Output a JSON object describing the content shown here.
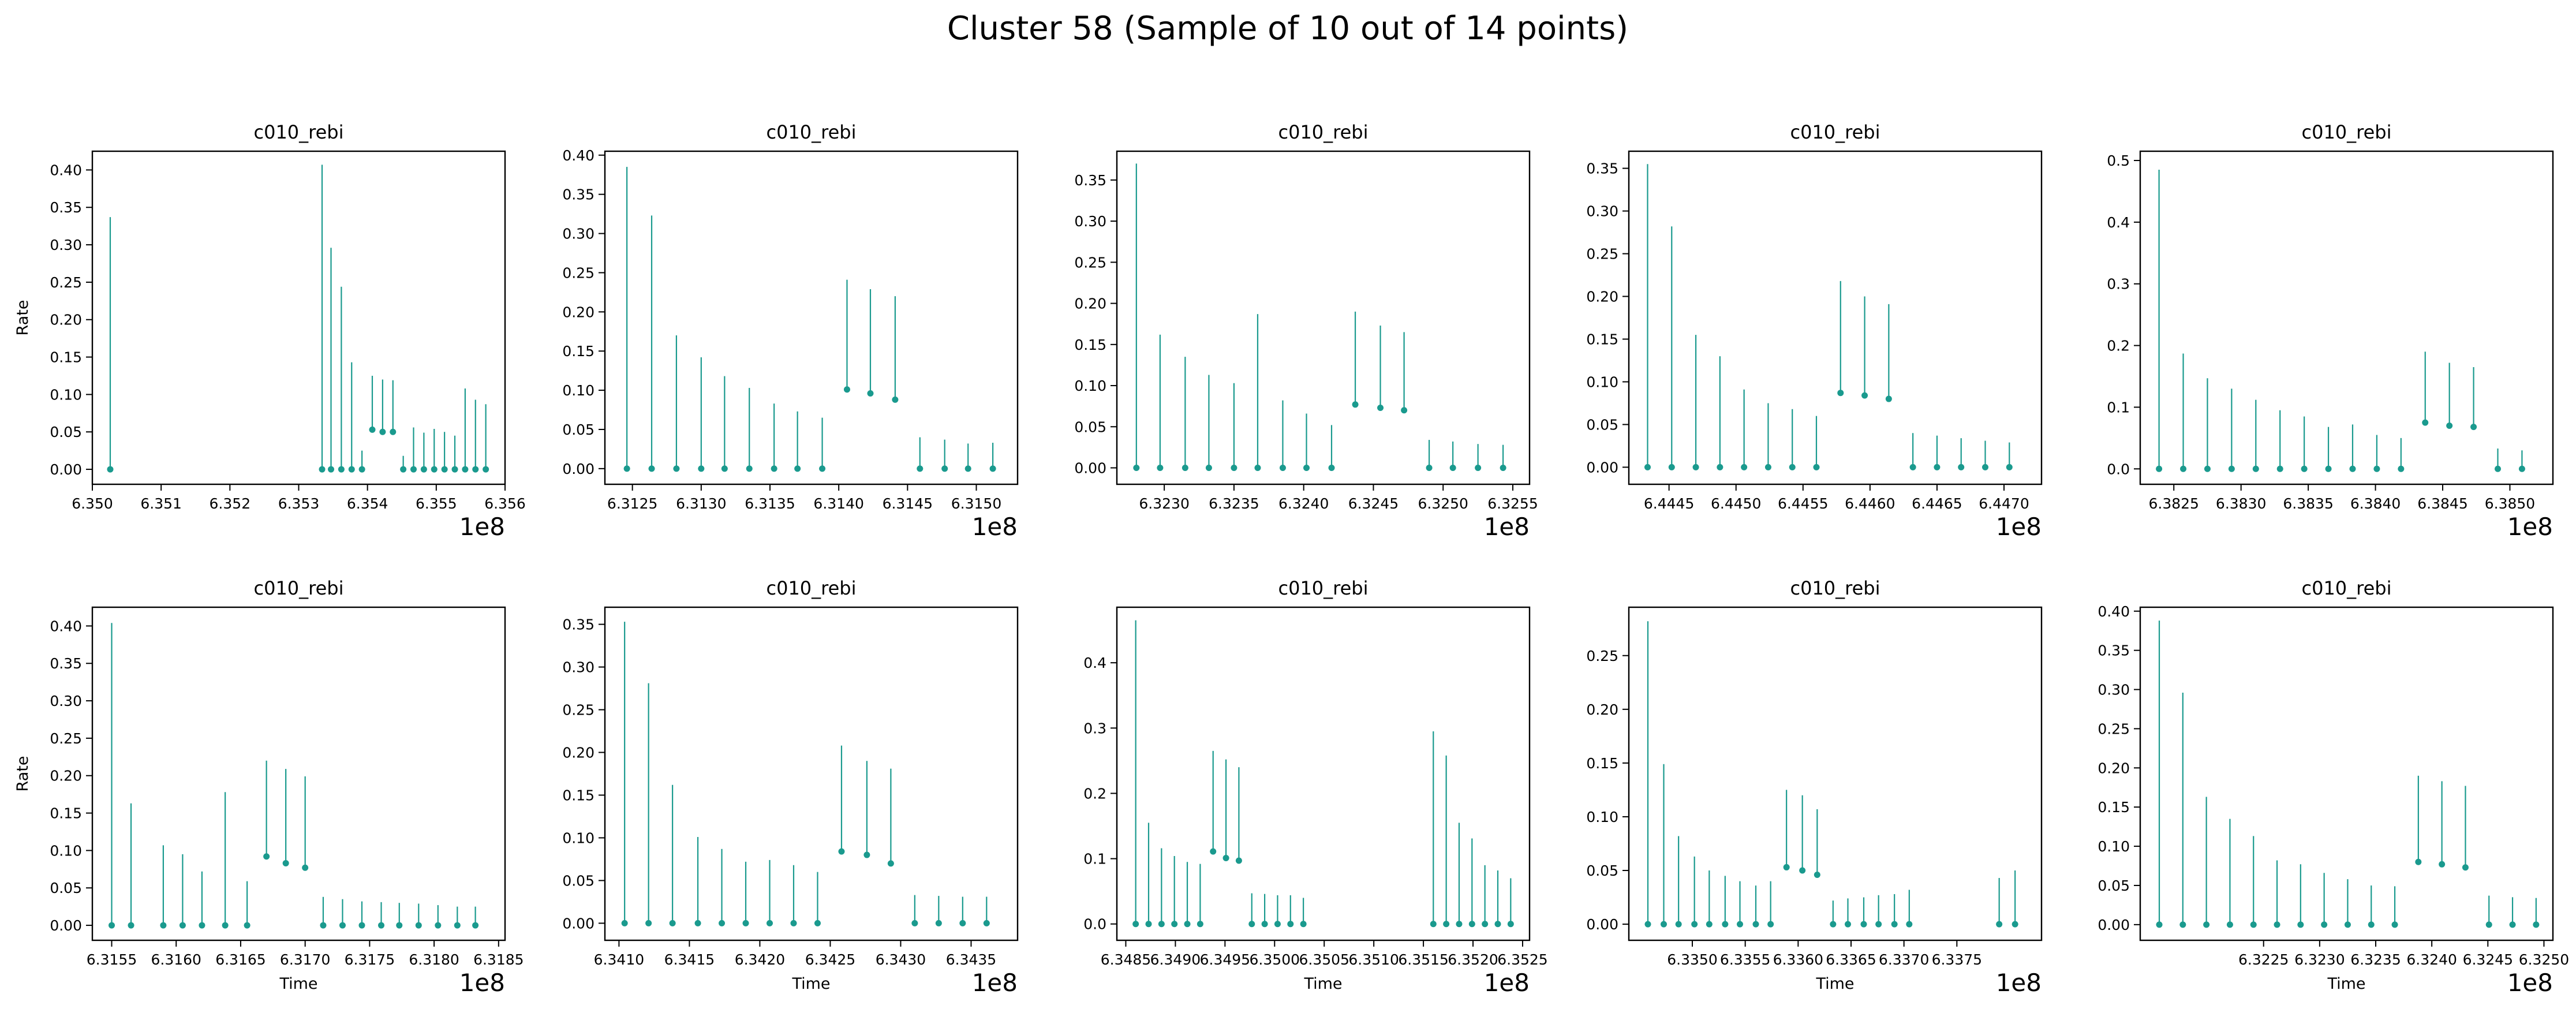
{
  "figure": {
    "title": "Cluster 58 (Sample of 10 out of 14 points)",
    "series_color": "#1a9a8e"
  },
  "chart_data": [
    {
      "type": "scatter",
      "title": "c010_rebi",
      "ylabel": "Rate",
      "xlabel": "",
      "offset_text": "1e8",
      "xlim": [
        635000000,
        635600000
      ],
      "ylim": [
        -0.02,
        0.425
      ],
      "xticks": [
        635000000,
        635100000,
        635200000,
        635300000,
        635400000,
        635500000,
        635600000
      ],
      "xticklabels": [
        "6.350",
        "6.351",
        "6.352",
        "6.353",
        "6.354",
        "6.355",
        "6.356"
      ],
      "yticks": [
        0,
        0.05,
        0.1,
        0.15,
        0.2,
        0.25,
        0.3,
        0.35,
        0.4
      ],
      "yticklabels": [
        "0.00",
        "0.05",
        "0.10",
        "0.15",
        "0.20",
        "0.25",
        "0.30",
        "0.35",
        "0.40"
      ],
      "x": [
        635026000,
        635334000,
        635347000,
        635362000,
        635377000,
        635392000,
        635407000,
        635422000,
        635437000,
        635452000,
        635467000,
        635482000,
        635497000,
        635512000,
        635527000,
        635542000,
        635557000,
        635572000
      ],
      "y": [
        0,
        0,
        0,
        0,
        0,
        0,
        0.053,
        0.05,
        0.05,
        0,
        0,
        0,
        0,
        0,
        0,
        0,
        0,
        0
      ],
      "err_hi": [
        0.337,
        0.407,
        0.296,
        0.244,
        0.143,
        0.025,
        0.125,
        0.12,
        0.119,
        0.018,
        0.056,
        0.049,
        0.054,
        0.05,
        0.045,
        0.108,
        0.093,
        0.087
      ]
    },
    {
      "type": "scatter",
      "title": "c010_rebi",
      "ylabel": "",
      "xlabel": "",
      "offset_text": "1e8",
      "xlim": [
        631230000,
        631530000
      ],
      "ylim": [
        -0.02,
        0.405
      ],
      "xticks": [
        631250000,
        631300000,
        631350000,
        631400000,
        631450000,
        631500000
      ],
      "xticklabels": [
        "6.3125",
        "6.3130",
        "6.3135",
        "6.3140",
        "6.3145",
        "6.3150"
      ],
      "yticks": [
        0,
        0.05,
        0.1,
        0.15,
        0.2,
        0.25,
        0.3,
        0.35,
        0.4
      ],
      "yticklabels": [
        "0.00",
        "0.05",
        "0.10",
        "0.15",
        "0.20",
        "0.25",
        "0.30",
        "0.35",
        "0.40"
      ],
      "x": [
        631246000,
        631264000,
        631282000,
        631300000,
        631317000,
        631335000,
        631353000,
        631370000,
        631388000,
        631406000,
        631423000,
        631441000,
        631459000,
        631477000,
        631494000,
        631512000
      ],
      "y": [
        0,
        0,
        0,
        0,
        0,
        0,
        0,
        0,
        0,
        0.101,
        0.096,
        0.088,
        0,
        0,
        0,
        0
      ],
      "err_hi": [
        0.385,
        0.323,
        0.17,
        0.142,
        0.118,
        0.103,
        0.083,
        0.073,
        0.065,
        0.241,
        0.229,
        0.22,
        0.04,
        0.037,
        0.032,
        0.033
      ]
    },
    {
      "type": "scatter",
      "title": "c010_rebi",
      "ylabel": "",
      "xlabel": "",
      "offset_text": "1e8",
      "xlim": [
        632266000,
        632562000
      ],
      "ylim": [
        -0.02,
        0.385
      ],
      "xticks": [
        632300000,
        632350000,
        632400000,
        632450000,
        632500000,
        632550000
      ],
      "xticklabels": [
        "6.3230",
        "6.3235",
        "6.3240",
        "6.3245",
        "6.3250",
        "6.3255"
      ],
      "yticks": [
        0,
        0.05,
        0.1,
        0.15,
        0.2,
        0.25,
        0.3,
        0.35
      ],
      "yticklabels": [
        "0.00",
        "0.05",
        "0.10",
        "0.15",
        "0.20",
        "0.25",
        "0.30",
        "0.35"
      ],
      "x": [
        632280000,
        632297000,
        632315000,
        632332000,
        632350000,
        632367000,
        632385000,
        632402000,
        632420000,
        632437000,
        632455000,
        632472000,
        632490000,
        632507000,
        632525000,
        632543000
      ],
      "y": [
        0,
        0,
        0,
        0,
        0,
        0,
        0,
        0,
        0,
        0.077,
        0.073,
        0.07,
        0,
        0,
        0,
        0
      ],
      "err_hi": [
        0.37,
        0.162,
        0.135,
        0.113,
        0.103,
        0.187,
        0.082,
        0.066,
        0.052,
        0.19,
        0.173,
        0.165,
        0.034,
        0.032,
        0.029,
        0.028
      ]
    },
    {
      "type": "scatter",
      "title": "c010_rebi",
      "ylabel": "",
      "xlabel": "",
      "offset_text": "1e8",
      "xlim": [
        644420000,
        644728000
      ],
      "ylim": [
        -0.02,
        0.37
      ],
      "xticks": [
        644450000,
        644500000,
        644550000,
        644600000,
        644650000,
        644700000
      ],
      "xticklabels": [
        "6.4445",
        "6.4450",
        "6.4455",
        "6.4460",
        "6.4465",
        "6.4470"
      ],
      "yticks": [
        0,
        0.05,
        0.1,
        0.15,
        0.2,
        0.25,
        0.3,
        0.35
      ],
      "yticklabels": [
        "0.00",
        "0.05",
        "0.10",
        "0.15",
        "0.20",
        "0.25",
        "0.30",
        "0.35"
      ],
      "x": [
        644434000,
        644452000,
        644470000,
        644488000,
        644506000,
        644524000,
        644542000,
        644560000,
        644578000,
        644596000,
        644614000,
        644632000,
        644650000,
        644668000,
        644686000,
        644704000
      ],
      "y": [
        0,
        0,
        0,
        0,
        0,
        0,
        0,
        0,
        0.087,
        0.084,
        0.08,
        0,
        0,
        0,
        0,
        0
      ],
      "err_hi": [
        0.355,
        0.282,
        0.155,
        0.13,
        0.091,
        0.075,
        0.068,
        0.06,
        0.218,
        0.2,
        0.191,
        0.04,
        0.037,
        0.034,
        0.031,
        0.029
      ]
    },
    {
      "type": "scatter",
      "title": "c010_rebi",
      "ylabel": "",
      "xlabel": "",
      "offset_text": "1e8",
      "xlim": [
        638225000,
        638532000
      ],
      "ylim": [
        -0.025,
        0.515
      ],
      "xticks": [
        638250000,
        638300000,
        638350000,
        638400000,
        638450000,
        638500000
      ],
      "xticklabels": [
        "6.3825",
        "6.3830",
        "6.3835",
        "6.3840",
        "6.3845",
        "6.3850"
      ],
      "yticks": [
        0,
        0.1,
        0.2,
        0.3,
        0.4,
        0.5
      ],
      "yticklabels": [
        "0.0",
        "0.1",
        "0.2",
        "0.3",
        "0.4",
        "0.5"
      ],
      "x": [
        638239000,
        638257000,
        638275000,
        638293000,
        638311000,
        638329000,
        638347000,
        638365000,
        638383000,
        638401000,
        638419000,
        638437000,
        638455000,
        638473000,
        638491000,
        638509000
      ],
      "y": [
        0,
        0,
        0,
        0,
        0,
        0,
        0,
        0,
        0,
        0,
        0,
        0.075,
        0.07,
        0.068,
        0,
        0
      ],
      "err_hi": [
        0.485,
        0.187,
        0.147,
        0.13,
        0.112,
        0.095,
        0.085,
        0.068,
        0.072,
        0.055,
        0.05,
        0.19,
        0.172,
        0.165,
        0.033,
        0.03
      ]
    },
    {
      "type": "scatter",
      "title": "c010_rebi",
      "ylabel": "Rate",
      "xlabel": "Time",
      "offset_text": "1e8",
      "xlim": [
        631535000,
        631855000
      ],
      "ylim": [
        -0.02,
        0.425
      ],
      "xticks": [
        631550000,
        631600000,
        631650000,
        631700000,
        631750000,
        631800000,
        631850000
      ],
      "xticklabels": [
        "6.3155",
        "6.3160",
        "6.3165",
        "6.3170",
        "6.3175",
        "6.3180",
        "6.3185"
      ],
      "yticks": [
        0,
        0.05,
        0.1,
        0.15,
        0.2,
        0.25,
        0.3,
        0.35,
        0.4
      ],
      "yticklabels": [
        "0.00",
        "0.05",
        "0.10",
        "0.15",
        "0.20",
        "0.25",
        "0.30",
        "0.35",
        "0.40"
      ],
      "x": [
        631550000,
        631565000,
        631590000,
        631605000,
        631620000,
        631638000,
        631655000,
        631670000,
        631685000,
        631700000,
        631714000,
        631729000,
        631744000,
        631759000,
        631773000,
        631788000,
        631803000,
        631818000,
        631832000
      ],
      "y": [
        0,
        0,
        0,
        0,
        0,
        0,
        0,
        0.092,
        0.083,
        0.077,
        0,
        0,
        0,
        0,
        0,
        0,
        0,
        0,
        0
      ],
      "err_hi": [
        0.404,
        0.163,
        0.107,
        0.095,
        0.072,
        0.178,
        0.059,
        0.22,
        0.209,
        0.199,
        0.038,
        0.035,
        0.032,
        0.031,
        0.03,
        0.029,
        0.027,
        0.025,
        0.025
      ]
    },
    {
      "type": "scatter",
      "title": "c010_rebi",
      "ylabel": "",
      "xlabel": "Time",
      "offset_text": "1e8",
      "xlim": [
        634090000,
        634383000
      ],
      "ylim": [
        -0.02,
        0.37
      ],
      "xticks": [
        634100000,
        634150000,
        634200000,
        634250000,
        634300000,
        634350000
      ],
      "xticklabels": [
        "6.3410",
        "6.3415",
        "6.3420",
        "6.3425",
        "6.3430",
        "6.3435"
      ],
      "yticks": [
        0,
        0.05,
        0.1,
        0.15,
        0.2,
        0.25,
        0.3,
        0.35
      ],
      "yticklabels": [
        "0.00",
        "0.05",
        "0.10",
        "0.15",
        "0.20",
        "0.25",
        "0.30",
        "0.35"
      ],
      "x": [
        634104000,
        634121000,
        634138000,
        634156000,
        634173000,
        634190000,
        634207000,
        634224000,
        634241000,
        634258000,
        634276000,
        634293000,
        634310000,
        634327000,
        634344000,
        634361000
      ],
      "y": [
        0,
        0,
        0,
        0,
        0,
        0,
        0,
        0,
        0,
        0.084,
        0.08,
        0.07,
        0,
        0,
        0,
        0
      ],
      "err_hi": [
        0.353,
        0.281,
        0.162,
        0.101,
        0.087,
        0.072,
        0.074,
        0.068,
        0.06,
        0.208,
        0.19,
        0.181,
        0.033,
        0.032,
        0.031,
        0.031
      ]
    },
    {
      "type": "scatter",
      "title": "c010_rebi",
      "ylabel": "",
      "xlabel": "Time",
      "offset_text": "1e8",
      "xlim": [
        634841000,
        635257000
      ],
      "ylim": [
        -0.025,
        0.485
      ],
      "xticks": [
        634850000,
        634900000,
        634950000,
        635000000,
        635050000,
        635100000,
        635150000,
        635200000,
        635250000
      ],
      "xticklabels": [
        "6.3485",
        "6.3490",
        "6.3495",
        "6.3500",
        "6.3505",
        "6.3510",
        "6.3515",
        "6.3520",
        "6.3525"
      ],
      "yticks": [
        0,
        0.1,
        0.2,
        0.3,
        0.4
      ],
      "yticklabels": [
        "0.0",
        "0.1",
        "0.2",
        "0.3",
        "0.4"
      ],
      "x": [
        634860000,
        634873000,
        634886000,
        634899000,
        634912000,
        634925000,
        634938000,
        634951000,
        634964000,
        634977000,
        634990000,
        635003000,
        635016000,
        635029000,
        635160000,
        635173000,
        635186000,
        635199000,
        635212000,
        635225000,
        635238000
      ],
      "y": [
        0,
        0,
        0,
        0,
        0,
        0,
        0.111,
        0.101,
        0.097,
        0,
        0,
        0,
        0,
        0,
        0,
        0,
        0,
        0,
        0,
        0,
        0
      ],
      "err_hi": [
        0.465,
        0.155,
        0.116,
        0.104,
        0.095,
        0.092,
        0.265,
        0.252,
        0.24,
        0.047,
        0.046,
        0.044,
        0.044,
        0.04,
        0.295,
        0.258,
        0.155,
        0.131,
        0.09,
        0.082,
        0.07
      ]
    },
    {
      "type": "scatter",
      "title": "c010_rebi",
      "ylabel": "",
      "xlabel": "Time",
      "offset_text": "1e8",
      "xlim": [
        633440000,
        633830000
      ],
      "ylim": [
        -0.015,
        0.295
      ],
      "xticks": [
        633500000,
        633550000,
        633600000,
        633650000,
        633700000,
        633750000
      ],
      "xticklabels": [
        "6.3350",
        "6.3355",
        "6.3360",
        "6.3365",
        "6.3370",
        "6.3375"
      ],
      "yticks": [
        0,
        0.05,
        0.1,
        0.15,
        0.2,
        0.25
      ],
      "yticklabels": [
        "0.00",
        "0.05",
        "0.10",
        "0.15",
        "0.20",
        "0.25"
      ],
      "x": [
        633458000,
        633473000,
        633487000,
        633502000,
        633516000,
        633531000,
        633545000,
        633560000,
        633574000,
        633589000,
        633604000,
        633618000,
        633633000,
        633647000,
        633662000,
        633676000,
        633691000,
        633705000,
        633790000,
        633805000
      ],
      "y": [
        0,
        0,
        0,
        0,
        0,
        0,
        0,
        0,
        0,
        0.053,
        0.05,
        0.046,
        0,
        0,
        0,
        0,
        0,
        0,
        0,
        0
      ],
      "err_hi": [
        0.282,
        0.149,
        0.082,
        0.063,
        0.05,
        0.045,
        0.04,
        0.036,
        0.04,
        0.125,
        0.12,
        0.107,
        0.022,
        0.024,
        0.025,
        0.027,
        0.028,
        0.032,
        0.043,
        0.05
      ]
    },
    {
      "type": "scatter",
      "title": "c010_rebi",
      "ylabel": "",
      "xlabel": "Time",
      "offset_text": "1e8",
      "xlim": [
        632140000,
        632508000
      ],
      "ylim": [
        -0.02,
        0.405
      ],
      "xticks": [
        632250000,
        632300000,
        632350000,
        632400000,
        632450000,
        632500000
      ],
      "xticklabels": [
        "6.3225",
        "6.3230",
        "6.3235",
        "6.3240",
        "6.3245",
        "6.3250"
      ],
      "yticks": [
        0,
        0.05,
        0.1,
        0.15,
        0.2,
        0.25,
        0.3,
        0.35,
        0.4
      ],
      "yticklabels": [
        "0.00",
        "0.05",
        "0.10",
        "0.15",
        "0.20",
        "0.25",
        "0.30",
        "0.35",
        "0.40"
      ],
      "x": [
        632157000,
        632178000,
        632199000,
        632220000,
        632241000,
        632262000,
        632283000,
        632304000,
        632325000,
        632346000,
        632367000,
        632388000,
        632409000,
        632430000,
        632451000,
        632472000,
        632493000
      ],
      "y": [
        0,
        0,
        0,
        0,
        0,
        0,
        0,
        0,
        0,
        0,
        0,
        0.08,
        0.077,
        0.073,
        0,
        0,
        0
      ],
      "err_hi": [
        0.388,
        0.296,
        0.163,
        0.135,
        0.113,
        0.082,
        0.077,
        0.066,
        0.058,
        0.05,
        0.049,
        0.19,
        0.183,
        0.177,
        0.037,
        0.035,
        0.034
      ]
    }
  ]
}
